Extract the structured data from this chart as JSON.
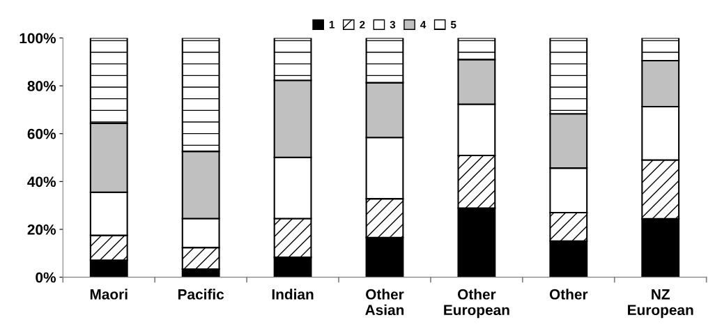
{
  "chart_data": {
    "type": "bar",
    "stacked": true,
    "categories": [
      "Maori",
      "Pacific",
      "Indian",
      "Other\nAsian",
      "Other\nEuropean",
      "Other",
      "NZ\nEuropean"
    ],
    "series": [
      {
        "name": "1",
        "color": "#000000",
        "values": [
          7.1,
          3.4,
          8.3,
          16.6,
          28.9,
          15.1,
          24.4
        ]
      },
      {
        "name": "2",
        "color": "#000000",
        "values": [
          10.4,
          9.0,
          16.2,
          16.2,
          22.0,
          11.9,
          24.6
        ]
      },
      {
        "name": "3",
        "color": "#ffffff",
        "values": [
          18.0,
          12.1,
          25.6,
          25.6,
          21.4,
          18.6,
          22.3
        ]
      },
      {
        "name": "4",
        "color": "#c0c0c0",
        "values": [
          28.8,
          28.1,
          32.2,
          22.9,
          18.7,
          22.7,
          19.2
        ]
      },
      {
        "name": "5",
        "color": "#000000",
        "values": [
          35.7,
          47.4,
          17.7,
          18.7,
          9.0,
          31.7,
          9.5
        ]
      }
    ],
    "ylim": [
      0,
      100
    ],
    "yticks": [
      {
        "value": 0,
        "label": "0%"
      },
      {
        "value": 20,
        "label": "20%"
      },
      {
        "value": 40,
        "label": "40%"
      },
      {
        "value": 60,
        "label": "60%"
      },
      {
        "value": 80,
        "label": "80%"
      },
      {
        "value": 100,
        "label": "100%"
      }
    ],
    "grid": false,
    "legend": "top"
  }
}
